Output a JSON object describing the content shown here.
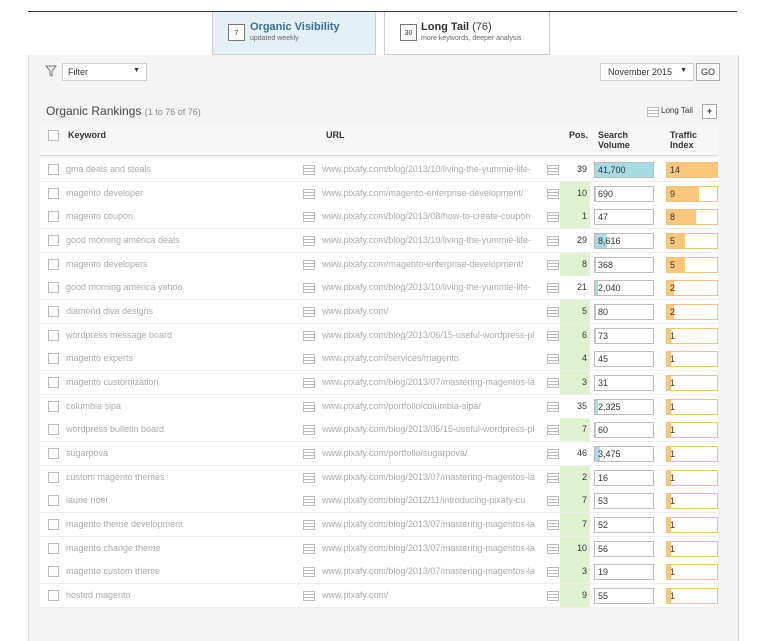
{
  "tabs": [
    {
      "icon": "7",
      "title": "Organic Visibility",
      "subtitle": "updated weekly"
    },
    {
      "icon": "30",
      "title": "Long Tail",
      "count": "(76)",
      "subtitle": "more keywords, deeper analysis"
    }
  ],
  "toolbar": {
    "filter": "Filter",
    "month": "November 2015",
    "go": "GO"
  },
  "section": {
    "title": "Organic Rankings",
    "range": "(1 to 76 of 76)",
    "view": "Long Tail",
    "add": "+"
  },
  "table": {
    "headers": [
      "Keyword",
      "URL",
      "Pos.",
      "Search Volume",
      "Traffic Index"
    ],
    "volume_max": 41700,
    "traffic_max": 14,
    "rows": [
      {
        "keyword": "gma deals and steals",
        "url": "www.pixafy.com/blog/2013/10/living-the-yummie-life-",
        "pos": 39,
        "volume": {
          "value": 41700,
          "label": "41,700"
        },
        "traffic": 14
      },
      {
        "keyword": "magento developer",
        "url": "www.pixafy.com/magento-enterprise-development/",
        "pos": 10,
        "volume": 690,
        "traffic": 9
      },
      {
        "keyword": "magento coupon",
        "url": "www.pixafy.com/blog/2013/08/how-to-create-coupon",
        "pos": 1,
        "volume": 47,
        "traffic": 8
      },
      {
        "keyword": "good morning america deals",
        "url": "www.pixafy.com/blog/2013/10/living-the-yummie-life-",
        "pos": 29,
        "volume": {
          "value": 8616,
          "label": "8,616"
        },
        "traffic": 5
      },
      {
        "keyword": "magento developers",
        "url": "www.pixafy.com/magento-enterprise-development/",
        "pos": 8,
        "volume": 368,
        "traffic": 5
      },
      {
        "keyword": "good morning america yahoo",
        "url": "www.pixafy.com/blog/2013/10/living-the-yummie-life-",
        "pos": 21,
        "volume": {
          "value": 2040,
          "label": "2,040"
        },
        "traffic": 2
      },
      {
        "keyword": "diamond diva designs",
        "url": "www.pixafy.com/",
        "pos": 5,
        "volume": 80,
        "traffic": 2
      },
      {
        "keyword": "wordpress message board",
        "url": "www.pixafy.com/blog/2013/06/15-useful-wordpress-pl",
        "pos": 6,
        "volume": 73,
        "traffic": 1
      },
      {
        "keyword": "magento experts",
        "url": "www.pixafy.com/services/magento",
        "pos": 4,
        "volume": 45,
        "traffic": 1
      },
      {
        "keyword": "magento customization",
        "url": "www.pixafy.com/blog/2013/07/mastering-magentos-la",
        "pos": 3,
        "volume": 31,
        "traffic": 1
      },
      {
        "keyword": "columbia sipa",
        "url": "www.pixafy.com/portfolio/columbia-sipa/",
        "pos": 35,
        "volume": {
          "value": 2325,
          "label": "2,325"
        },
        "traffic": 1
      },
      {
        "keyword": "wordpress bulletin board",
        "url": "www.pixafy.com/blog/2013/06/15-useful-wordpress-pl",
        "pos": 7,
        "volume": 60,
        "traffic": 1
      },
      {
        "keyword": "sugarpova",
        "url": "www.pixafy.com/portfolio/sugarpova/",
        "pos": 46,
        "volume": {
          "value": 3475,
          "label": "3,475"
        },
        "traffic": 1
      },
      {
        "keyword": "custom magento themes",
        "url": "www.pixafy.com/blog/2013/07/mastering-magentos-la",
        "pos": 2,
        "volume": 16,
        "traffic": 1
      },
      {
        "keyword": "laurie noel",
        "url": "www.pixafy.com/blog/2012/11/introducing-pixafy-cu",
        "pos": 7,
        "volume": 53,
        "traffic": 1
      },
      {
        "keyword": "magento theme development",
        "url": "www.pixafy.com/blog/2013/07/mastering-magentos-la",
        "pos": 7,
        "volume": 52,
        "traffic": 1
      },
      {
        "keyword": "magento change theme",
        "url": "www.pixafy.com/blog/2013/07/mastering-magentos-la",
        "pos": 10,
        "volume": 56,
        "traffic": 1
      },
      {
        "keyword": "magento custom theme",
        "url": "www.pixafy.com/blog/2013/07/mastering-magentos-la",
        "pos": 3,
        "volume": 19,
        "traffic": 1
      },
      {
        "keyword": "hosted magento",
        "url": "www.pixafy.com/",
        "pos": 9,
        "volume": 55,
        "traffic": 1
      }
    ]
  }
}
